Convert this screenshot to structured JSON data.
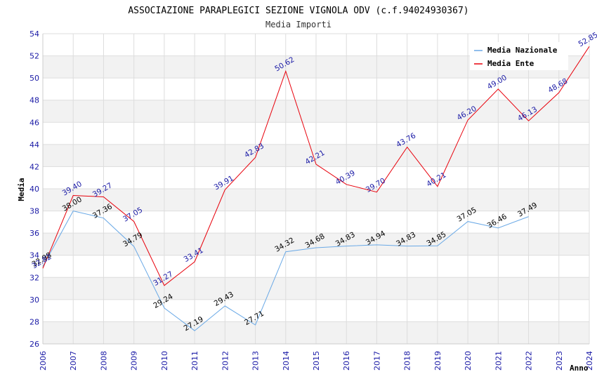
{
  "chart_data": {
    "type": "line",
    "title": "ASSOCIAZIONE PARAPLEGICI SEZIONE VIGNOLA ODV (c.f.94024930367)",
    "subtitle": "Media Importi",
    "xlabel": "Anno",
    "ylabel": "Media",
    "ylim": [
      26,
      54
    ],
    "yticks": [
      "26",
      "28",
      "30",
      "32",
      "34",
      "36",
      "38",
      "40",
      "42",
      "44",
      "46",
      "48",
      "50",
      "52",
      "54"
    ],
    "categories": [
      "2006",
      "2007",
      "2008",
      "2009",
      "2010",
      "2011",
      "2012",
      "2013",
      "2014",
      "2015",
      "2016",
      "2017",
      "2018",
      "2019",
      "2020",
      "2021",
      "2022",
      "2023",
      "2024"
    ],
    "grid": true,
    "legend_position": "top-right",
    "series": [
      {
        "name": "Media Nazionale",
        "color": "#6aa9e6",
        "label_color": "#000000",
        "values": [
          32.98,
          38.0,
          37.36,
          34.79,
          29.24,
          27.19,
          29.43,
          27.71,
          34.32,
          34.68,
          34.83,
          34.94,
          34.83,
          34.85,
          37.05,
          36.46,
          37.49,
          null,
          null
        ],
        "labels": [
          "32.98",
          "38.00",
          "37.36",
          "34.79",
          "29.24",
          "27.19",
          "29.43",
          "27.71",
          "34.32",
          "34.68",
          "34.83",
          "34.94",
          "34.83",
          "34.85",
          "37.05",
          "36.46",
          "37.49",
          "",
          ""
        ]
      },
      {
        "name": "Media Ente",
        "color": "#e8000b",
        "label_color": "#1a1aa6",
        "values": [
          32.82,
          39.4,
          39.27,
          37.05,
          31.27,
          33.41,
          39.91,
          42.83,
          50.62,
          42.21,
          40.39,
          39.7,
          43.76,
          40.21,
          46.2,
          49.0,
          46.13,
          48.68,
          52.85
        ],
        "labels": [
          "32.82",
          "39.40",
          "39.27",
          "37.05",
          "31.27",
          "33.41",
          "39.91",
          "42.83",
          "50.62",
          "42.21",
          "40.39",
          "39.70",
          "43.76",
          "40.21",
          "46.20",
          "49.00",
          "46.13",
          "48.68",
          "52.85"
        ]
      }
    ]
  }
}
